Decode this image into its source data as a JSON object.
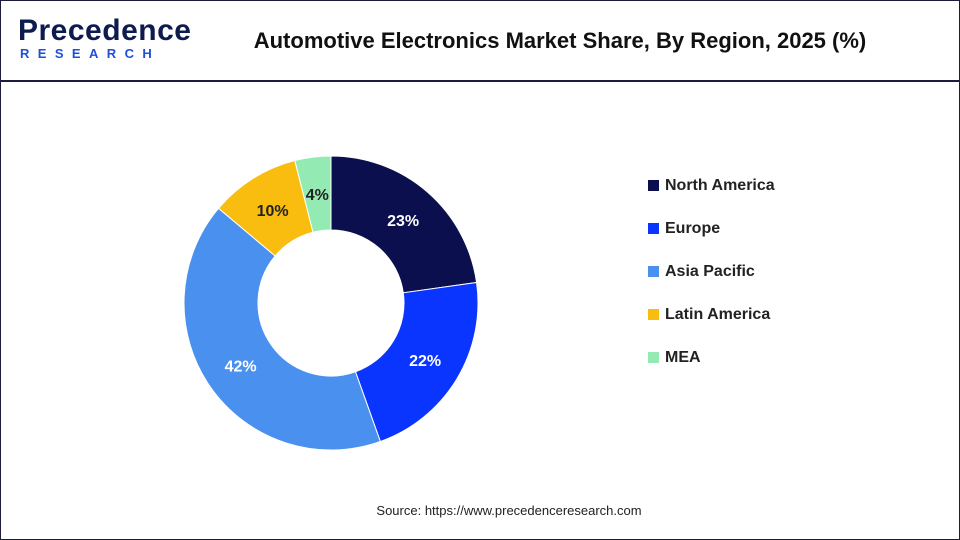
{
  "header": {
    "logo_main": "Precedence",
    "logo_sub": "RESEARCH",
    "title": "Automotive Electronics Market Share, By Region, 2025 (%)"
  },
  "chart_data": {
    "type": "pie",
    "title": "Automotive Electronics Market Share, By Region, 2025 (%)",
    "donut": true,
    "categories": [
      "North America",
      "Europe",
      "Asia Pacific",
      "Latin America",
      "MEA"
    ],
    "values": [
      23,
      22,
      42,
      10,
      4
    ],
    "labels": [
      "23%",
      "22%",
      "42%",
      "10%",
      "4%"
    ],
    "colors": [
      "#0b0f4d",
      "#0a35ff",
      "#4a90ee",
      "#f9bd0f",
      "#93ebb3"
    ],
    "label_colors": [
      "#ffffff",
      "#ffffff",
      "#ffffff",
      "#222222",
      "#222222"
    ],
    "legend_position": "right"
  },
  "footer": {
    "source": "Source: https://www.precedenceresearch.com"
  }
}
